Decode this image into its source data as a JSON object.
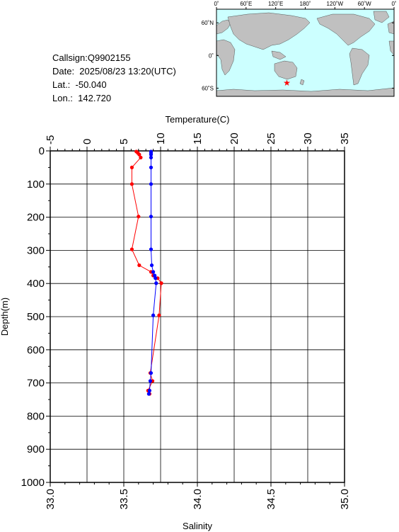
{
  "station": {
    "callsign": "Callsign:Q9902155",
    "date": "Date:  2025/08/23 13:20(UTC)",
    "lat": "Lat.:  -50.040",
    "lon": "Lon.:  142.720"
  },
  "map": {
    "lon_labels": [
      "0˚",
      "60˚E",
      "120˚E",
      "180˚",
      "120˚W",
      "60˚W",
      "0˚"
    ],
    "lat_labels": [
      "60˚N",
      "0˚",
      "60˚S"
    ],
    "ocean_color": "#ccffff",
    "land_color": "#c0c0c0",
    "marker": {
      "lat": -50.04,
      "lon": 142.72,
      "color": "#ff0000",
      "icon": "star-icon"
    }
  },
  "chart_data": {
    "type": "line",
    "y_axis": {
      "label": "Depth(m)",
      "range": [
        0,
        1000
      ],
      "ticks": [
        0,
        100,
        200,
        300,
        400,
        500,
        600,
        700,
        800,
        900,
        1000
      ],
      "inverted": true
    },
    "x_top": {
      "label": "Temperature(C)",
      "range": [
        -5,
        35
      ],
      "ticks": [
        -5,
        0,
        5,
        10,
        15,
        20,
        25,
        30,
        35
      ]
    },
    "x_bottom": {
      "label": "Salinity",
      "range": [
        33.0,
        35.0
      ],
      "ticks": [
        "33.0",
        "33.5",
        "34.0",
        "34.5",
        "35.0"
      ]
    },
    "grid": true,
    "series": [
      {
        "axis": "x_top",
        "color": "#ff0000",
        "points": [
          {
            "x": 6.7,
            "y": 2
          },
          {
            "x": 6.9,
            "y": 6
          },
          {
            "x": 7.1,
            "y": 11
          },
          {
            "x": 7.3,
            "y": 20
          },
          {
            "x": 6.1,
            "y": 50
          },
          {
            "x": 6.1,
            "y": 100
          },
          {
            "x": 7.0,
            "y": 198
          },
          {
            "x": 6.1,
            "y": 297
          },
          {
            "x": 7.1,
            "y": 345
          },
          {
            "x": 8.7,
            "y": 365
          },
          {
            "x": 9.0,
            "y": 376
          },
          {
            "x": 9.6,
            "y": 384
          },
          {
            "x": 10.1,
            "y": 399
          },
          {
            "x": 9.8,
            "y": 496
          },
          {
            "x": 8.6,
            "y": 670
          },
          {
            "x": 8.9,
            "y": 694
          },
          {
            "x": 8.3,
            "y": 723
          },
          {
            "x": 8.5,
            "y": 733
          }
        ]
      },
      {
        "axis": "x_bottom",
        "color": "#0000ff",
        "points": [
          {
            "x": 33.685,
            "y": 2
          },
          {
            "x": 33.685,
            "y": 6
          },
          {
            "x": 33.685,
            "y": 11
          },
          {
            "x": 33.685,
            "y": 20
          },
          {
            "x": 33.685,
            "y": 50
          },
          {
            "x": 33.685,
            "y": 100
          },
          {
            "x": 33.685,
            "y": 198
          },
          {
            "x": 33.685,
            "y": 297
          },
          {
            "x": 33.69,
            "y": 345
          },
          {
            "x": 33.7,
            "y": 365
          },
          {
            "x": 33.71,
            "y": 376
          },
          {
            "x": 33.715,
            "y": 384
          },
          {
            "x": 33.72,
            "y": 399
          },
          {
            "x": 33.7,
            "y": 496
          },
          {
            "x": 33.685,
            "y": 670
          },
          {
            "x": 33.68,
            "y": 694
          },
          {
            "x": 33.675,
            "y": 723
          },
          {
            "x": 33.67,
            "y": 733
          }
        ]
      }
    ]
  }
}
